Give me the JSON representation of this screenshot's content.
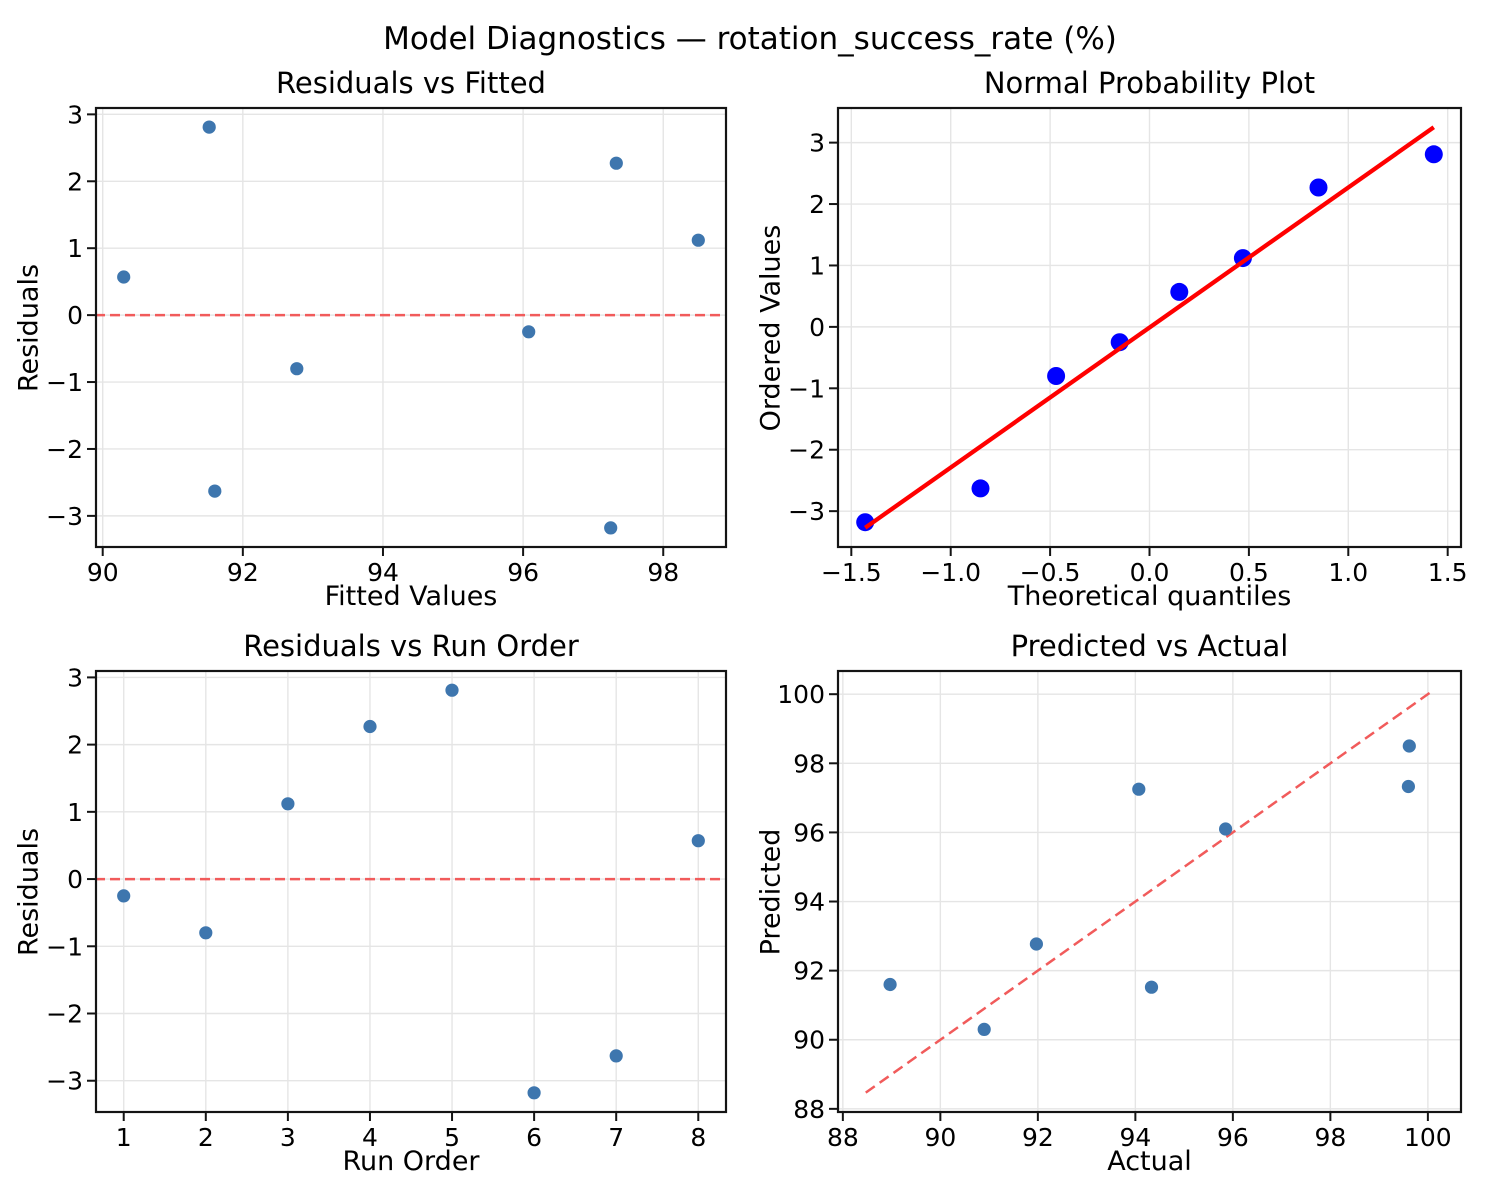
{
  "suptitle": "Model Diagnostics — rotation_success_rate (%)",
  "style": {
    "background": "#ffffff",
    "grid_color": "#e5e5e5",
    "spine_color": "#141414",
    "tick_color": "#141414",
    "scatter_color": "#3e76ae",
    "probplot_point_color": "#0000ff",
    "probplot_line_color": "#ff0000",
    "reference_line_color": "#f15b5b"
  },
  "chart_data": [
    {
      "id": "residuals-vs-fitted",
      "type": "scatter",
      "title": "Residuals vs Fitted",
      "xlabel": "Fitted Values",
      "ylabel": "Residuals",
      "xlim": [
        89.89,
        98.91
      ],
      "ylim": [
        -3.48,
        3.11
      ],
      "grid": true,
      "xticks": [
        {
          "v": 90,
          "label": "90"
        },
        {
          "v": 92,
          "label": "92"
        },
        {
          "v": 94,
          "label": "94"
        },
        {
          "v": 96,
          "label": "96"
        },
        {
          "v": 98,
          "label": "98"
        }
      ],
      "yticks": [
        {
          "v": 3,
          "label": "3"
        },
        {
          "v": 2,
          "label": "2"
        },
        {
          "v": 1,
          "label": "1"
        },
        {
          "v": 0,
          "label": "0"
        },
        {
          "v": -1,
          "label": "−1"
        },
        {
          "v": -2,
          "label": "−2"
        },
        {
          "v": -3,
          "label": "−3"
        }
      ],
      "marker": {
        "color": "#3e76ae",
        "radius": 6.6
      },
      "points": {
        "x": [
          90.3,
          91.52,
          91.6,
          92.77,
          96.08,
          97.25,
          97.33,
          98.5
        ],
        "y": [
          0.57,
          2.81,
          -2.63,
          -0.8,
          -0.25,
          -3.18,
          2.27,
          1.12
        ]
      },
      "ref_lines": [
        {
          "kind": "h",
          "y": 0,
          "color": "#f15b5b",
          "width": 2.5,
          "dash": "10 5",
          "above": false
        }
      ]
    },
    {
      "id": "normal-probability-plot",
      "type": "scatter",
      "title": "Normal Probability Plot",
      "xlabel": "Theoretical quantiles",
      "ylabel": "Ordered Values",
      "xlim": [
        -1.572,
        1.572
      ],
      "ylim": [
        -3.6,
        3.58
      ],
      "grid": true,
      "xticks": [
        {
          "v": -1.5,
          "label": "−1.5"
        },
        {
          "v": -1.0,
          "label": "−1.0"
        },
        {
          "v": -0.5,
          "label": "−0.5"
        },
        {
          "v": 0.0,
          "label": "0.0"
        },
        {
          "v": 0.5,
          "label": "0.5"
        },
        {
          "v": 1.0,
          "label": "1.0"
        },
        {
          "v": 1.5,
          "label": "1.5"
        }
      ],
      "yticks": [
        {
          "v": 3,
          "label": "3"
        },
        {
          "v": 2,
          "label": "2"
        },
        {
          "v": 1,
          "label": "1"
        },
        {
          "v": 0,
          "label": "0"
        },
        {
          "v": -1,
          "label": "−1"
        },
        {
          "v": -2,
          "label": "−2"
        },
        {
          "v": -3,
          "label": "−3"
        }
      ],
      "marker": {
        "color": "#0000ff",
        "radius": 9
      },
      "points": {
        "x": [
          -1.43,
          -0.85,
          -0.47,
          -0.15,
          0.15,
          0.47,
          0.85,
          1.43
        ],
        "y": [
          -3.18,
          -2.63,
          -0.8,
          -0.25,
          0.57,
          1.12,
          2.27,
          2.81
        ]
      },
      "ref_lines": [
        {
          "kind": "segment",
          "x1": -1.43,
          "y1": -3.27,
          "x2": 1.43,
          "y2": 3.25,
          "color": "#ff0000",
          "width": 4.3,
          "dash": "",
          "above": true
        }
      ]
    },
    {
      "id": "residuals-vs-run-order",
      "type": "scatter",
      "title": "Residuals vs Run Order",
      "xlabel": "Run Order",
      "ylabel": "Residuals",
      "xlim": [
        0.65,
        8.35
      ],
      "ylim": [
        -3.48,
        3.11
      ],
      "grid": true,
      "xticks": [
        {
          "v": 1,
          "label": "1"
        },
        {
          "v": 2,
          "label": "2"
        },
        {
          "v": 3,
          "label": "3"
        },
        {
          "v": 4,
          "label": "4"
        },
        {
          "v": 5,
          "label": "5"
        },
        {
          "v": 6,
          "label": "6"
        },
        {
          "v": 7,
          "label": "7"
        },
        {
          "v": 8,
          "label": "8"
        }
      ],
      "yticks": [
        {
          "v": 3,
          "label": "3"
        },
        {
          "v": 2,
          "label": "2"
        },
        {
          "v": 1,
          "label": "1"
        },
        {
          "v": 0,
          "label": "0"
        },
        {
          "v": -1,
          "label": "−1"
        },
        {
          "v": -2,
          "label": "−2"
        },
        {
          "v": -3,
          "label": "−3"
        }
      ],
      "marker": {
        "color": "#3e76ae",
        "radius": 6.6
      },
      "points": {
        "x": [
          1,
          2,
          3,
          4,
          5,
          6,
          7,
          8
        ],
        "y": [
          -0.25,
          -0.8,
          1.12,
          2.27,
          2.81,
          -3.18,
          -2.63,
          0.57
        ]
      },
      "ref_lines": [
        {
          "kind": "h",
          "y": 0,
          "color": "#f15b5b",
          "width": 2.5,
          "dash": "10 5",
          "above": false
        }
      ]
    },
    {
      "id": "predicted-vs-actual",
      "type": "scatter",
      "title": "Predicted vs Actual",
      "xlabel": "Actual",
      "ylabel": "Predicted",
      "xlim": [
        87.88,
        100.7
      ],
      "ylim": [
        87.88,
        100.7
      ],
      "grid": true,
      "xticks": [
        {
          "v": 88,
          "label": "88"
        },
        {
          "v": 90,
          "label": "90"
        },
        {
          "v": 92,
          "label": "92"
        },
        {
          "v": 94,
          "label": "94"
        },
        {
          "v": 96,
          "label": "96"
        },
        {
          "v": 98,
          "label": "98"
        },
        {
          "v": 100,
          "label": "100"
        }
      ],
      "yticks": [
        {
          "v": 100,
          "label": "100"
        },
        {
          "v": 98,
          "label": "98"
        },
        {
          "v": 96,
          "label": "96"
        },
        {
          "v": 94,
          "label": "94"
        },
        {
          "v": 92,
          "label": "92"
        },
        {
          "v": 90,
          "label": "90"
        },
        {
          "v": 88,
          "label": "88"
        }
      ],
      "marker": {
        "color": "#3e76ae",
        "radius": 6.6
      },
      "points": {
        "x": [
          95.85,
          91.97,
          99.62,
          99.6,
          94.33,
          94.07,
          88.97,
          90.9
        ],
        "y": [
          96.1,
          92.77,
          98.5,
          97.33,
          91.52,
          97.25,
          91.6,
          90.3
        ]
      },
      "ref_lines": [
        {
          "kind": "segment",
          "x1": 88.47,
          "y1": 88.47,
          "x2": 100.12,
          "y2": 100.12,
          "color": "#f15b5b",
          "width": 2.5,
          "dash": "11 6",
          "above": false
        }
      ]
    }
  ]
}
